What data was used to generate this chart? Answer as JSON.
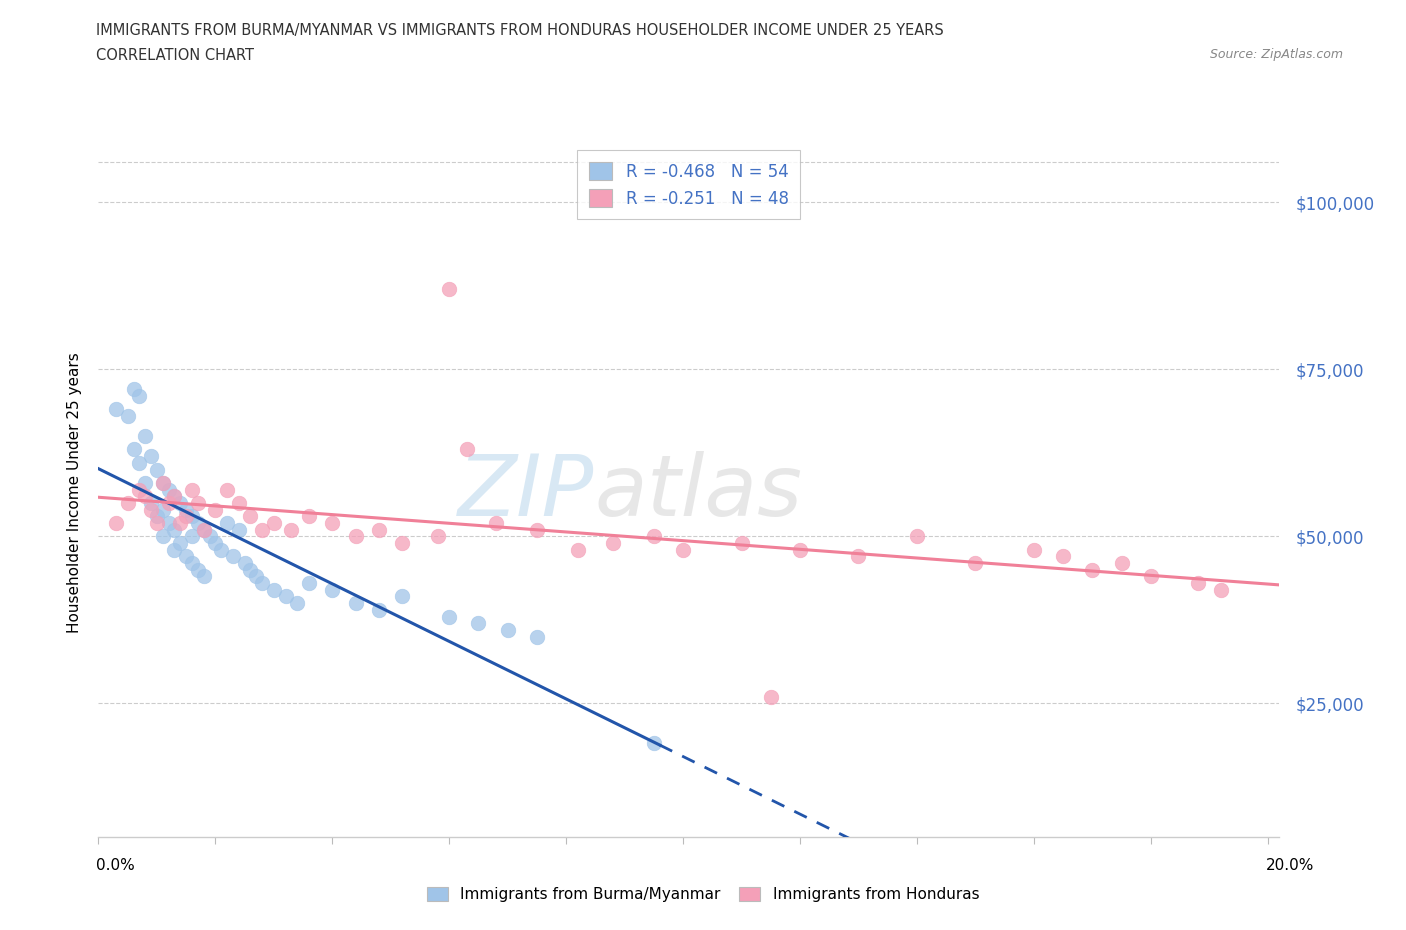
{
  "title_line1": "IMMIGRANTS FROM BURMA/MYANMAR VS IMMIGRANTS FROM HONDURAS HOUSEHOLDER INCOME UNDER 25 YEARS",
  "title_line2": "CORRELATION CHART",
  "source_text": "Source: ZipAtlas.com",
  "ylabel": "Householder Income Under 25 years",
  "bottom_legend": [
    "Immigrants from Burma/Myanmar",
    "Immigrants from Honduras"
  ],
  "legend_r_entries": [
    {
      "label": "R = -0.468   N = 54",
      "color": "#a8c8e8"
    },
    {
      "label": "R = -0.251   N = 48",
      "color": "#f4b0c0"
    }
  ],
  "ytick_labels": [
    "$25,000",
    "$50,000",
    "$75,000",
    "$100,000"
  ],
  "ytick_values": [
    25000,
    50000,
    75000,
    100000
  ],
  "ymin": 5000,
  "ymax": 108000,
  "xmin": 0.0,
  "xmax": 0.202,
  "blue_color": "#a0c4e8",
  "pink_color": "#f4a0b8",
  "blue_line_color": "#2255aa",
  "pink_line_color": "#f08098",
  "blue_scatter_x": [
    0.003,
    0.005,
    0.006,
    0.006,
    0.007,
    0.007,
    0.008,
    0.008,
    0.009,
    0.009,
    0.01,
    0.01,
    0.011,
    0.011,
    0.011,
    0.012,
    0.012,
    0.013,
    0.013,
    0.013,
    0.014,
    0.014,
    0.015,
    0.015,
    0.016,
    0.016,
    0.016,
    0.017,
    0.017,
    0.018,
    0.018,
    0.019,
    0.02,
    0.021,
    0.022,
    0.023,
    0.024,
    0.025,
    0.026,
    0.027,
    0.028,
    0.03,
    0.032,
    0.034,
    0.036,
    0.04,
    0.044,
    0.048,
    0.052,
    0.06,
    0.065,
    0.07,
    0.075,
    0.095
  ],
  "blue_scatter_y": [
    69000,
    68000,
    72000,
    63000,
    71000,
    61000,
    65000,
    58000,
    62000,
    55000,
    60000,
    53000,
    58000,
    54000,
    50000,
    57000,
    52000,
    56000,
    51000,
    48000,
    55000,
    49000,
    54000,
    47000,
    53000,
    50000,
    46000,
    52000,
    45000,
    51000,
    44000,
    50000,
    49000,
    48000,
    52000,
    47000,
    51000,
    46000,
    45000,
    44000,
    43000,
    42000,
    41000,
    40000,
    43000,
    42000,
    40000,
    39000,
    41000,
    38000,
    37000,
    36000,
    35000,
    19000
  ],
  "pink_scatter_x": [
    0.003,
    0.005,
    0.007,
    0.008,
    0.009,
    0.01,
    0.011,
    0.012,
    0.013,
    0.014,
    0.015,
    0.016,
    0.017,
    0.018,
    0.02,
    0.022,
    0.024,
    0.026,
    0.028,
    0.03,
    0.033,
    0.036,
    0.04,
    0.044,
    0.048,
    0.052,
    0.058,
    0.063,
    0.068,
    0.075,
    0.082,
    0.088,
    0.095,
    0.1,
    0.11,
    0.12,
    0.13,
    0.14,
    0.15,
    0.16,
    0.165,
    0.17,
    0.175,
    0.18,
    0.188,
    0.192,
    0.06,
    0.115
  ],
  "pink_scatter_y": [
    52000,
    55000,
    57000,
    56000,
    54000,
    52000,
    58000,
    55000,
    56000,
    52000,
    53000,
    57000,
    55000,
    51000,
    54000,
    57000,
    55000,
    53000,
    51000,
    52000,
    51000,
    53000,
    52000,
    50000,
    51000,
    49000,
    50000,
    63000,
    52000,
    51000,
    48000,
    49000,
    50000,
    48000,
    49000,
    48000,
    47000,
    50000,
    46000,
    48000,
    47000,
    45000,
    46000,
    44000,
    43000,
    42000,
    87000,
    26000
  ],
  "blue_line_x0": 0.0,
  "blue_line_x_solid_end": 0.096,
  "blue_line_x_dash_end": 0.202,
  "pink_line_x0": 0.0,
  "pink_line_x1": 0.202
}
